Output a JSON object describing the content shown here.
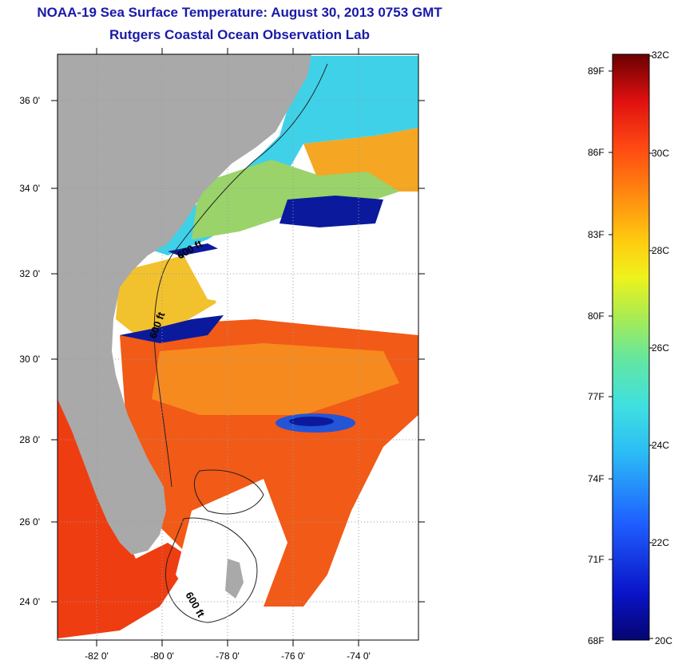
{
  "title": {
    "line1": "NOAA-19 Sea Surface Temperature:  August 30, 2013 0753 GMT",
    "line2": "Rutgers Coastal Ocean Observation Lab"
  },
  "map": {
    "lat_labels": [
      "36 0'",
      "34 0'",
      "32 0'",
      "30 0'",
      "28 0'",
      "26 0'",
      "24 0'"
    ],
    "lon_labels": [
      "-82 0'",
      "-80 0'",
      "-78 0'",
      "-76 0'",
      "-74 0'"
    ],
    "contour_labels": [
      "600 ft",
      "600 ft",
      "600 ft"
    ],
    "colors": {
      "land": "#a9a9a9",
      "no_data": "#ffffff",
      "warm": "#f25a17",
      "cool": "#3fd1e8",
      "cloud_edge": "#0b1a9c"
    }
  },
  "colorbar": {
    "f_labels": [
      "89F",
      "86F",
      "83F",
      "80F",
      "77F",
      "74F",
      "71F",
      "68F"
    ],
    "c_labels": [
      "32C",
      "30C",
      "28C",
      "26C",
      "24C",
      "22C",
      "20C"
    ],
    "range_c": [
      20,
      32
    ],
    "range_f": [
      68,
      89.6
    ]
  }
}
